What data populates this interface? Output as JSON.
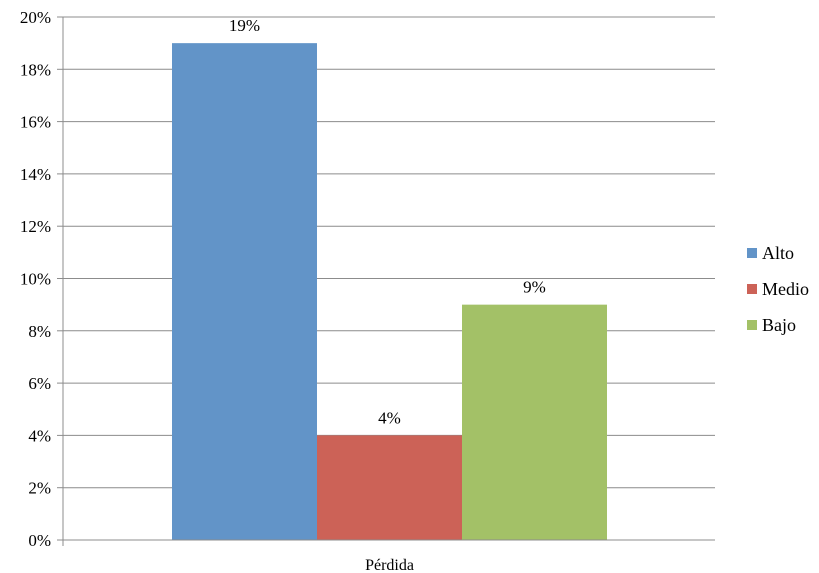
{
  "chart_data": {
    "type": "bar",
    "categories": [
      "Pérdida"
    ],
    "series": [
      {
        "name": "Alto",
        "values": [
          19
        ],
        "label": "19%",
        "color": "#6294C8"
      },
      {
        "name": "Medio",
        "values": [
          4
        ],
        "label": "4%",
        "color": "#CC6257"
      },
      {
        "name": "Bajo",
        "values": [
          9
        ],
        "label": "9%",
        "color": "#A3C167"
      }
    ],
    "ylim": [
      0,
      20
    ],
    "yticks": [
      0,
      2,
      4,
      6,
      8,
      10,
      12,
      14,
      16,
      18,
      20
    ],
    "ytick_labels": [
      "0%",
      "2%",
      "4%",
      "6%",
      "8%",
      "10%",
      "12%",
      "14%",
      "16%",
      "18%",
      "20%"
    ],
    "grid": true,
    "legend_position": "right",
    "title": "",
    "xlabel": "",
    "ylabel": ""
  }
}
